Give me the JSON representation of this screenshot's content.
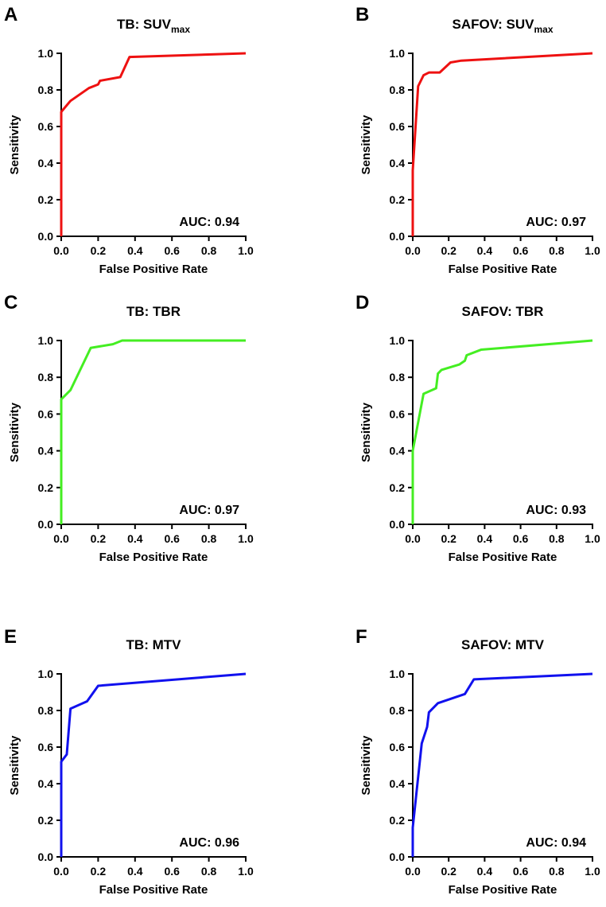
{
  "chart_data": [
    {
      "panel": "A",
      "type": "line",
      "title": "TB: SUV",
      "title_sub": "max",
      "xlabel": "False Positive Rate",
      "ylabel": "Sensitivity",
      "xlim": [
        0,
        1
      ],
      "ylim": [
        0,
        1
      ],
      "xticks": [
        "0.0",
        "0.2",
        "0.4",
        "0.6",
        "0.8",
        "1.0"
      ],
      "yticks": [
        "0.0",
        "0.2",
        "0.4",
        "0.6",
        "0.8",
        "1.0"
      ],
      "annotation": "AUC: 0.94",
      "color": "#ee1111",
      "x": [
        0,
        0,
        0.05,
        0.15,
        0.2,
        0.21,
        0.32,
        0.37,
        1
      ],
      "y": [
        0,
        0.68,
        0.74,
        0.81,
        0.83,
        0.85,
        0.87,
        0.98,
        1
      ]
    },
    {
      "panel": "B",
      "type": "line",
      "title": "SAFOV: SUV",
      "title_sub": "max",
      "xlabel": "False Positive Rate",
      "ylabel": "Sensitivity",
      "xlim": [
        0,
        1
      ],
      "ylim": [
        0,
        1
      ],
      "xticks": [
        "0.0",
        "0.2",
        "0.4",
        "0.6",
        "0.8",
        "1.0"
      ],
      "yticks": [
        "0.0",
        "0.2",
        "0.4",
        "0.6",
        "0.8",
        "1.0"
      ],
      "annotation": "AUC: 0.97",
      "color": "#ee1111",
      "x": [
        0,
        0,
        0.03,
        0.06,
        0.09,
        0.15,
        0.21,
        0.27,
        1
      ],
      "y": [
        0,
        0.36,
        0.82,
        0.88,
        0.895,
        0.895,
        0.95,
        0.96,
        1
      ]
    },
    {
      "panel": "C",
      "type": "line",
      "title": "TB: TBR",
      "title_sub": "",
      "xlabel": "False Positive Rate",
      "ylabel": "Sensitivity",
      "xlim": [
        0,
        1
      ],
      "ylim": [
        0,
        1
      ],
      "xticks": [
        "0.0",
        "0.2",
        "0.4",
        "0.6",
        "0.8",
        "1.0"
      ],
      "yticks": [
        "0.0",
        "0.2",
        "0.4",
        "0.6",
        "0.8",
        "1.0"
      ],
      "annotation": "AUC: 0.97",
      "color": "#44ee22",
      "x": [
        0,
        0,
        0.05,
        0.16,
        0.28,
        0.33,
        1
      ],
      "y": [
        0,
        0.68,
        0.73,
        0.96,
        0.98,
        1,
        1
      ]
    },
    {
      "panel": "D",
      "type": "line",
      "title": "SAFOV: TBR",
      "title_sub": "",
      "xlabel": "False Positive Rate",
      "ylabel": "Sensitivity",
      "xlim": [
        0,
        1
      ],
      "ylim": [
        0,
        1
      ],
      "xticks": [
        "0.0",
        "0.2",
        "0.4",
        "0.6",
        "0.8",
        "1.0"
      ],
      "yticks": [
        "0.0",
        "0.2",
        "0.4",
        "0.6",
        "0.8",
        "1.0"
      ],
      "annotation": "AUC: 0.93",
      "color": "#44ee22",
      "x": [
        0,
        0,
        0.06,
        0.13,
        0.14,
        0.16,
        0.26,
        0.29,
        0.3,
        0.38,
        1
      ],
      "y": [
        0,
        0.4,
        0.71,
        0.74,
        0.82,
        0.84,
        0.87,
        0.89,
        0.92,
        0.95,
        1
      ]
    },
    {
      "panel": "E",
      "type": "line",
      "title": "TB: MTV",
      "title_sub": "",
      "xlabel": "False Positive Rate",
      "ylabel": "Sensitivity",
      "xlim": [
        0,
        1
      ],
      "ylim": [
        0,
        1
      ],
      "xticks": [
        "0.0",
        "0.2",
        "0.4",
        "0.6",
        "0.8",
        "1.0"
      ],
      "yticks": [
        "0.0",
        "0.2",
        "0.4",
        "0.6",
        "0.8",
        "1.0"
      ],
      "annotation": "AUC: 0.96",
      "color": "#1111ee",
      "x": [
        0,
        0,
        0.03,
        0.05,
        0.14,
        0.2,
        1
      ],
      "y": [
        0,
        0.52,
        0.56,
        0.81,
        0.85,
        0.935,
        1
      ]
    },
    {
      "panel": "F",
      "type": "line",
      "title": "SAFOV: MTV",
      "title_sub": "",
      "xlabel": "False Positive Rate",
      "ylabel": "Sensitivity",
      "xlim": [
        0,
        1
      ],
      "ylim": [
        0,
        1
      ],
      "xticks": [
        "0.0",
        "0.2",
        "0.4",
        "0.6",
        "0.8",
        "1.0"
      ],
      "yticks": [
        "0.0",
        "0.2",
        "0.4",
        "0.6",
        "0.8",
        "1.0"
      ],
      "annotation": "AUC: 0.94",
      "color": "#1111ee",
      "x": [
        0,
        0,
        0.05,
        0.08,
        0.09,
        0.14,
        0.29,
        0.34,
        1
      ],
      "y": [
        0,
        0.16,
        0.62,
        0.71,
        0.79,
        0.84,
        0.89,
        0.97,
        1
      ]
    }
  ]
}
